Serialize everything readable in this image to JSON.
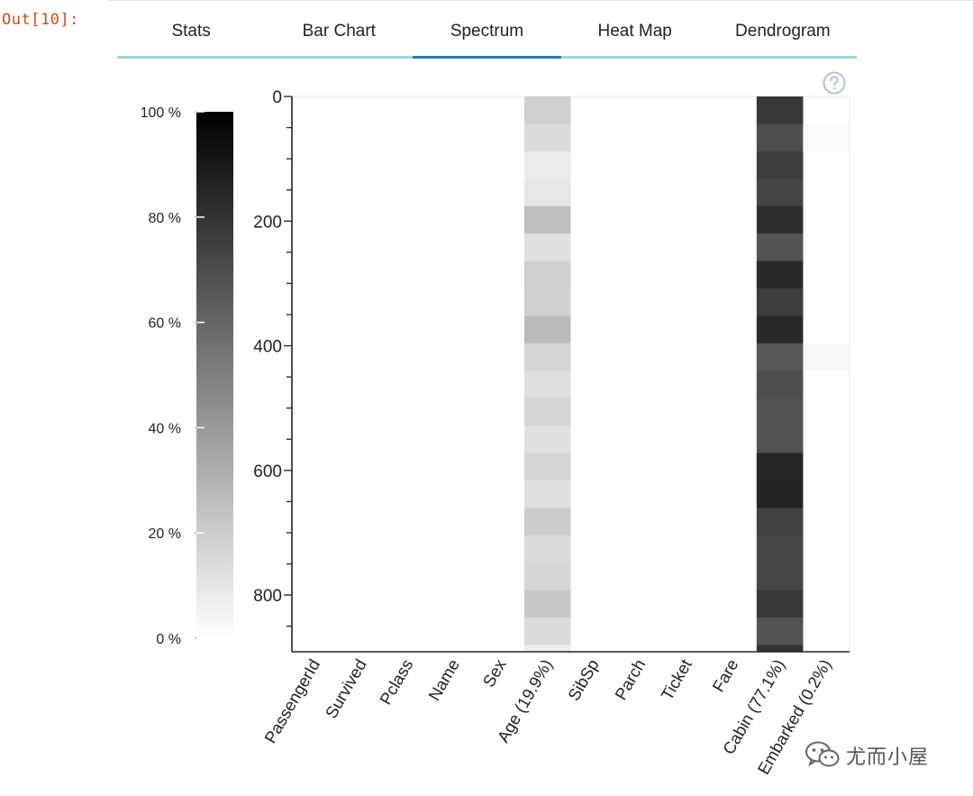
{
  "output_prompt": "Out[10]:",
  "tabs": [
    {
      "label": "Stats",
      "active": false
    },
    {
      "label": "Bar Chart",
      "active": false
    },
    {
      "label": "Spectrum",
      "active": true
    },
    {
      "label": "Heat Map",
      "active": false
    },
    {
      "label": "Dendrogram",
      "active": false
    }
  ],
  "help_icon": "question-circle-icon",
  "watermark": {
    "text": "尤而小屋",
    "icon": "wechat-icon"
  },
  "colors": {
    "tab_accent": "#2b78b6",
    "tab_line": "#9fd8e0",
    "prompt": "#c24f1e"
  },
  "chart_data": {
    "type": "heatmap",
    "columns": [
      "PassengerId",
      "Survived",
      "Pclass",
      "Name",
      "Sex",
      "Age (19.9%)",
      "SibSp",
      "Parch",
      "Ticket",
      "Fare",
      "Cabin (77.1%)",
      "Embarked (0.2%)"
    ],
    "ylim": [
      0,
      891
    ],
    "y_ticks": [
      0,
      200,
      400,
      600,
      800
    ],
    "y_tick_labels": [
      "0",
      "200",
      "400",
      "600",
      "800"
    ],
    "block_size": 44,
    "missing_fraction": [
      [
        0,
        0,
        0,
        0,
        0,
        0.19,
        0,
        0,
        0,
        0,
        0.78,
        0
      ],
      [
        0,
        0,
        0,
        0,
        0,
        0.14,
        0,
        0,
        0,
        0,
        0.7,
        0.02
      ],
      [
        0,
        0,
        0,
        0,
        0,
        0.08,
        0,
        0,
        0,
        0,
        0.76,
        0
      ],
      [
        0,
        0,
        0,
        0,
        0,
        0.1,
        0,
        0,
        0,
        0,
        0.73,
        0
      ],
      [
        0,
        0,
        0,
        0,
        0,
        0.25,
        0,
        0,
        0,
        0,
        0.82,
        0
      ],
      [
        0,
        0,
        0,
        0,
        0,
        0.12,
        0,
        0,
        0,
        0,
        0.67,
        0
      ],
      [
        0,
        0,
        0,
        0,
        0,
        0.19,
        0,
        0,
        0,
        0,
        0.84,
        0
      ],
      [
        0,
        0,
        0,
        0,
        0,
        0.18,
        0,
        0,
        0,
        0,
        0.76,
        0
      ],
      [
        0,
        0,
        0,
        0,
        0,
        0.27,
        0,
        0,
        0,
        0,
        0.84,
        0
      ],
      [
        0,
        0,
        0,
        0,
        0,
        0.17,
        0,
        0,
        0,
        0,
        0.66,
        0.03
      ],
      [
        0,
        0,
        0,
        0,
        0,
        0.13,
        0,
        0,
        0,
        0,
        0.7,
        0
      ],
      [
        0,
        0,
        0,
        0,
        0,
        0.17,
        0,
        0,
        0,
        0,
        0.68,
        0
      ],
      [
        0,
        0,
        0,
        0,
        0,
        0.12,
        0,
        0,
        0,
        0,
        0.67,
        0
      ],
      [
        0,
        0,
        0,
        0,
        0,
        0.17,
        0,
        0,
        0,
        0,
        0.85,
        0
      ],
      [
        0,
        0,
        0,
        0,
        0,
        0.12,
        0,
        0,
        0,
        0,
        0.86,
        0
      ],
      [
        0,
        0,
        0,
        0,
        0,
        0.2,
        0,
        0,
        0,
        0,
        0.74,
        0
      ],
      [
        0,
        0,
        0,
        0,
        0,
        0.14,
        0,
        0,
        0,
        0,
        0.72,
        0
      ],
      [
        0,
        0,
        0,
        0,
        0,
        0.16,
        0,
        0,
        0,
        0,
        0.72,
        0
      ],
      [
        0,
        0,
        0,
        0,
        0,
        0.22,
        0,
        0,
        0,
        0,
        0.78,
        0
      ],
      [
        0,
        0,
        0,
        0,
        0,
        0.14,
        0,
        0,
        0,
        0,
        0.68,
        0
      ],
      [
        0,
        0,
        0,
        0,
        0,
        0.07,
        0,
        0,
        0,
        0,
        0.8,
        0
      ]
    ],
    "colorbar": {
      "ticks": [
        0,
        20,
        40,
        60,
        80,
        100
      ],
      "tick_labels": [
        "0 %",
        "20 %",
        "40 %",
        "60 %",
        "80 %",
        "100 %"
      ],
      "range": [
        0,
        100
      ]
    }
  }
}
